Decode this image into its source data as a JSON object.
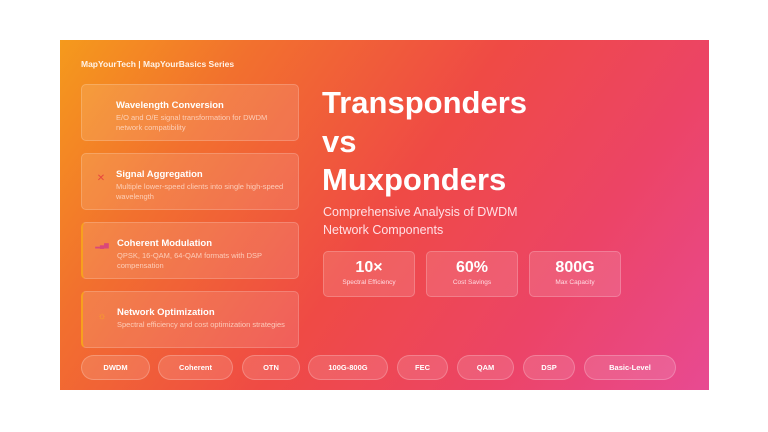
{
  "brand": "MapYourTech | MapYourBasics Series",
  "cards": [
    {
      "icon": "wavelength-icon",
      "glyph": "",
      "title": "Wavelength Conversion",
      "desc": "E/O and O/E signal transformation for DWDM network compatibility"
    },
    {
      "icon": "cross-icon",
      "glyph": "✕",
      "title": "Signal Aggregation",
      "desc": "Multiple lower-speed clients into single high-speed wavelength"
    },
    {
      "icon": "signal-bars-icon",
      "glyph": "▂▄▆",
      "title": "Coherent Modulation",
      "desc": "QPSK, 16-QAM, 64-QAM formats with DSP compensation"
    },
    {
      "icon": "gear-icon",
      "glyph": "☼",
      "title": "Network Optimization",
      "desc": "Spectral efficiency and cost optimization strategies"
    }
  ],
  "title": {
    "line1": "Transponders",
    "line2": "vs",
    "line3": "Muxponders"
  },
  "subtitle": "Comprehensive Analysis of DWDM Network Components",
  "stats": [
    {
      "value": "10×",
      "label": "Spectral Efficiency"
    },
    {
      "value": "60%",
      "label": "Cost Savings"
    },
    {
      "value": "800G",
      "label": "Max Capacity"
    }
  ],
  "tags": [
    "DWDM",
    "Coherent",
    "OTN",
    "100G-800G",
    "FEC",
    "QAM",
    "DSP",
    "Basic-Level"
  ]
}
